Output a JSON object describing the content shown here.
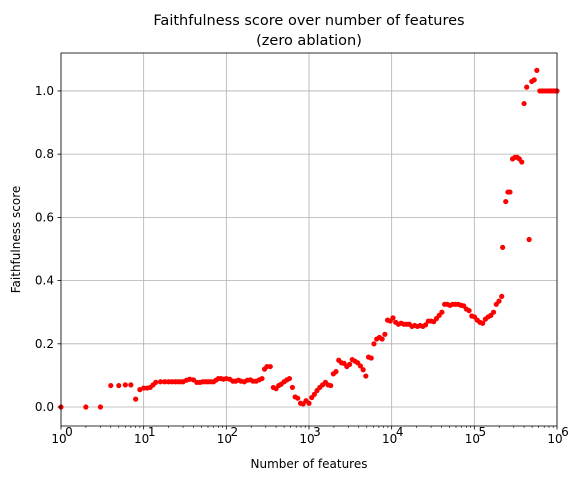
{
  "chart_data": {
    "type": "scatter",
    "title": "Faithfulness score over number of features",
    "subtitle": "(zero ablation)",
    "xlabel": "Number of features",
    "ylabel": "Faithfulness score",
    "xscale": "log",
    "xlim": [
      1,
      1000000
    ],
    "ylim": [
      -0.06,
      1.12
    ],
    "grid": true,
    "x_ticks": [
      1,
      10,
      100,
      1000,
      10000,
      100000,
      1000000
    ],
    "y_ticks": [
      0.0,
      0.2,
      0.4,
      0.6,
      0.8,
      1.0
    ],
    "y_tick_labels": [
      "0.0",
      "0.2",
      "0.4",
      "0.6",
      "0.8",
      "1.0"
    ],
    "marker_color": "#ff0000",
    "points": [
      [
        1,
        0.0
      ],
      [
        2,
        0.0
      ],
      [
        3,
        0.0
      ],
      [
        4,
        0.068
      ],
      [
        5,
        0.068
      ],
      [
        6,
        0.07
      ],
      [
        7,
        0.07
      ],
      [
        8,
        0.025
      ],
      [
        9,
        0.055
      ],
      [
        10,
        0.06
      ],
      [
        11,
        0.06
      ],
      [
        12,
        0.062
      ],
      [
        13,
        0.07
      ],
      [
        14,
        0.078
      ],
      [
        16,
        0.08
      ],
      [
        18,
        0.08
      ],
      [
        20,
        0.08
      ],
      [
        22,
        0.08
      ],
      [
        24,
        0.08
      ],
      [
        26,
        0.08
      ],
      [
        28,
        0.08
      ],
      [
        30,
        0.08
      ],
      [
        33,
        0.085
      ],
      [
        36,
        0.088
      ],
      [
        40,
        0.086
      ],
      [
        44,
        0.078
      ],
      [
        48,
        0.078
      ],
      [
        52,
        0.08
      ],
      [
        56,
        0.08
      ],
      [
        60,
        0.08
      ],
      [
        65,
        0.08
      ],
      [
        70,
        0.08
      ],
      [
        75,
        0.085
      ],
      [
        80,
        0.09
      ],
      [
        86,
        0.09
      ],
      [
        92,
        0.088
      ],
      [
        100,
        0.09
      ],
      [
        110,
        0.088
      ],
      [
        120,
        0.082
      ],
      [
        130,
        0.082
      ],
      [
        140,
        0.085
      ],
      [
        150,
        0.082
      ],
      [
        165,
        0.08
      ],
      [
        180,
        0.085
      ],
      [
        195,
        0.086
      ],
      [
        210,
        0.082
      ],
      [
        230,
        0.082
      ],
      [
        250,
        0.086
      ],
      [
        270,
        0.09
      ],
      [
        290,
        0.12
      ],
      [
        310,
        0.128
      ],
      [
        340,
        0.128
      ],
      [
        370,
        0.062
      ],
      [
        400,
        0.058
      ],
      [
        430,
        0.068
      ],
      [
        460,
        0.072
      ],
      [
        500,
        0.08
      ],
      [
        540,
        0.086
      ],
      [
        580,
        0.09
      ],
      [
        630,
        0.062
      ],
      [
        680,
        0.032
      ],
      [
        730,
        0.028
      ],
      [
        790,
        0.012
      ],
      [
        850,
        0.01
      ],
      [
        920,
        0.02
      ],
      [
        1000,
        0.012
      ],
      [
        1080,
        0.03
      ],
      [
        1160,
        0.04
      ],
      [
        1250,
        0.052
      ],
      [
        1350,
        0.062
      ],
      [
        1460,
        0.07
      ],
      [
        1580,
        0.078
      ],
      [
        1700,
        0.07
      ],
      [
        1830,
        0.068
      ],
      [
        1970,
        0.105
      ],
      [
        2120,
        0.112
      ],
      [
        2290,
        0.148
      ],
      [
        2470,
        0.14
      ],
      [
        2660,
        0.138
      ],
      [
        2870,
        0.128
      ],
      [
        3100,
        0.135
      ],
      [
        3340,
        0.15
      ],
      [
        3600,
        0.145
      ],
      [
        3880,
        0.14
      ],
      [
        4190,
        0.13
      ],
      [
        4520,
        0.118
      ],
      [
        4870,
        0.098
      ],
      [
        5250,
        0.158
      ],
      [
        5660,
        0.155
      ],
      [
        6110,
        0.2
      ],
      [
        6590,
        0.215
      ],
      [
        7110,
        0.22
      ],
      [
        7670,
        0.215
      ],
      [
        8270,
        0.23
      ],
      [
        8920,
        0.275
      ],
      [
        9620,
        0.272
      ],
      [
        10370,
        0.282
      ],
      [
        11190,
        0.268
      ],
      [
        12070,
        0.262
      ],
      [
        13020,
        0.265
      ],
      [
        14040,
        0.262
      ],
      [
        15150,
        0.262
      ],
      [
        16340,
        0.262
      ],
      [
        17620,
        0.255
      ],
      [
        19010,
        0.258
      ],
      [
        20500,
        0.255
      ],
      [
        22120,
        0.258
      ],
      [
        23860,
        0.255
      ],
      [
        25730,
        0.26
      ],
      [
        27760,
        0.272
      ],
      [
        29940,
        0.272
      ],
      [
        32300,
        0.27
      ],
      [
        34840,
        0.28
      ],
      [
        37580,
        0.29
      ],
      [
        40530,
        0.3
      ],
      [
        43720,
        0.325
      ],
      [
        47160,
        0.325
      ],
      [
        50870,
        0.322
      ],
      [
        54870,
        0.325
      ],
      [
        59190,
        0.325
      ],
      [
        63840,
        0.325
      ],
      [
        68860,
        0.322
      ],
      [
        74280,
        0.32
      ],
      [
        80120,
        0.31
      ],
      [
        86420,
        0.305
      ],
      [
        93220,
        0.288
      ],
      [
        100550,
        0.285
      ],
      [
        108460,
        0.275
      ],
      [
        116990,
        0.268
      ],
      [
        126190,
        0.265
      ],
      [
        136110,
        0.278
      ],
      [
        146820,
        0.285
      ],
      [
        158370,
        0.29
      ],
      [
        170820,
        0.3
      ],
      [
        184260,
        0.325
      ],
      [
        198750,
        0.335
      ],
      [
        214380,
        0.35
      ],
      [
        220000,
        0.505
      ],
      [
        240000,
        0.65
      ],
      [
        255000,
        0.68
      ],
      [
        270000,
        0.68
      ],
      [
        290000,
        0.785
      ],
      [
        310000,
        0.79
      ],
      [
        330000,
        0.79
      ],
      [
        350000,
        0.785
      ],
      [
        375000,
        0.775
      ],
      [
        400000,
        0.96
      ],
      [
        430000,
        1.012
      ],
      [
        460000,
        0.53
      ],
      [
        495000,
        1.03
      ],
      [
        530000,
        1.035
      ],
      [
        570000,
        1.065
      ],
      [
        620000,
        1.0
      ],
      [
        660000,
        1.0
      ],
      [
        700000,
        1.0
      ],
      [
        750000,
        1.0
      ],
      [
        800000,
        1.0
      ],
      [
        850000,
        1.0
      ],
      [
        900000,
        1.0
      ],
      [
        950000,
        1.0
      ],
      [
        1000000,
        1.0
      ]
    ]
  }
}
